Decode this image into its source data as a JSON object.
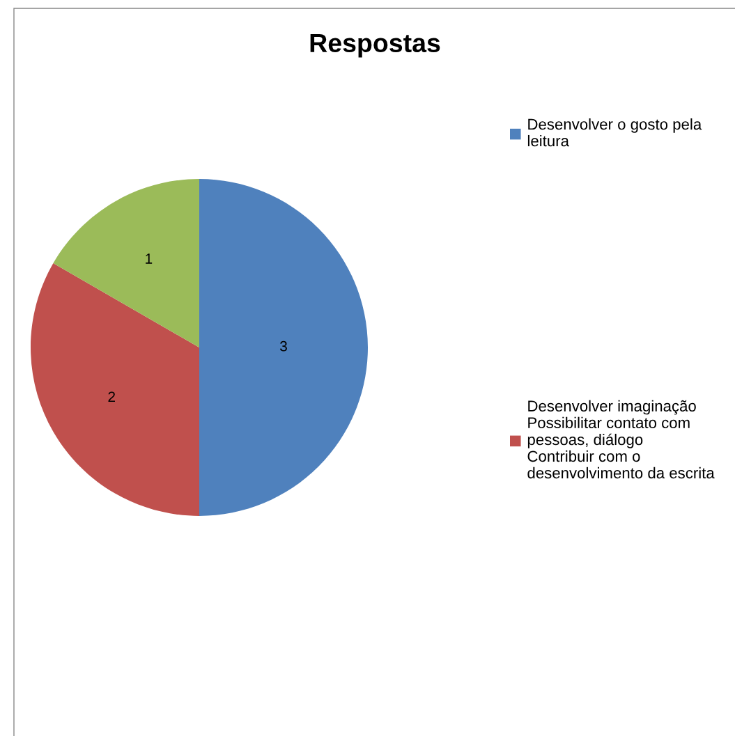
{
  "chart_data": {
    "type": "pie",
    "title": "Respostas",
    "categories": [
      "Desenvolver o gosto pela\nleitura",
      "Desenvolver imaginação\nPossibilitar contato com\npessoas, diálogo\nContribuir com o\ndesenvolvimento da escrita",
      null
    ],
    "values": [
      3,
      2,
      1
    ],
    "colors": [
      "#4f81bd",
      "#c0504d",
      "#9bbb59"
    ],
    "data_labels": true,
    "legend": "right"
  }
}
